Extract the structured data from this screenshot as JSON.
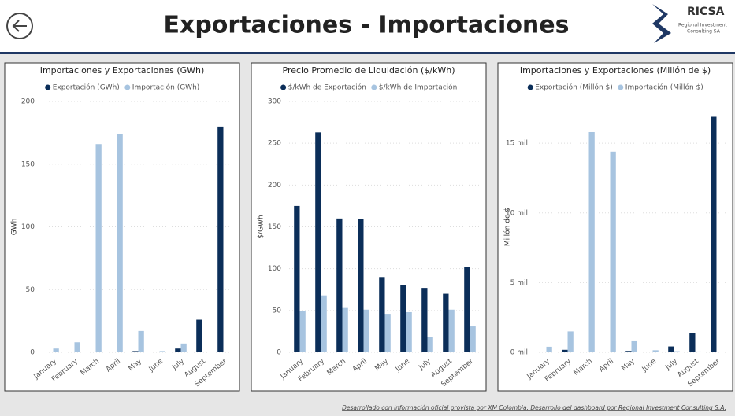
{
  "header": {
    "title": "Exportaciones - Importaciones",
    "logo_name": "RICSA",
    "logo_subtitle": [
      "Regional Investment",
      "Consulting SA"
    ]
  },
  "footer": "Desarrollado con información oficial provista por XM Colombia. Desarrollo del dashboard por Regional Investment Consulting S.A.",
  "chart_data": [
    {
      "type": "bar",
      "title": "Importaciones y Exportaciones (GWh)",
      "y_label": "GWh",
      "categories": [
        "January",
        "February",
        "March",
        "April",
        "May",
        "June",
        "July",
        "August",
        "September"
      ],
      "series": [
        {
          "name": "Exportación (GWh)",
          "color": "#0b2e59",
          "values": [
            0,
            0.5,
            0,
            0,
            1,
            0,
            3,
            26,
            180
          ]
        },
        {
          "name": "Importación (GWh)",
          "color": "#a7c4e0",
          "values": [
            3,
            8,
            166,
            174,
            17,
            1,
            7,
            0,
            0
          ]
        }
      ],
      "ylim": [
        0,
        200
      ],
      "yticks": [
        0,
        50,
        100,
        150,
        200
      ],
      "grid": true
    },
    {
      "type": "bar",
      "title": "Precio Promedio de Liquidación ($/kWh)",
      "y_label": "$/GWh",
      "categories": [
        "January",
        "February",
        "March",
        "April",
        "May",
        "June",
        "July",
        "August",
        "September"
      ],
      "series": [
        {
          "name": "$/kWh de Exportación",
          "color": "#0b2e59",
          "values": [
            175,
            263,
            160,
            159,
            90,
            80,
            77,
            70,
            102
          ]
        },
        {
          "name": "$/kWh de Importación",
          "color": "#a7c4e0",
          "values": [
            49,
            68,
            53,
            51,
            46,
            48,
            18,
            51,
            31
          ]
        }
      ],
      "ylim": [
        0,
        300
      ],
      "yticks": [
        0,
        50,
        100,
        150,
        200,
        250,
        300
      ],
      "grid": true
    },
    {
      "type": "bar",
      "title": "Importaciones y Exportaciones (Millón de $)",
      "y_label": "Millón de $",
      "categories": [
        "January",
        "February",
        "March",
        "April",
        "May",
        "June",
        "July",
        "August",
        "September"
      ],
      "series": [
        {
          "name": "Exportación (Millón $)",
          "color": "#0b2e59",
          "values": [
            0,
            180,
            0,
            0,
            100,
            0,
            420,
            1400,
            16900
          ]
        },
        {
          "name": "Importación (Millón $)",
          "color": "#a7c4e0",
          "values": [
            400,
            1500,
            15800,
            14400,
            850,
            150,
            80,
            60,
            30
          ]
        }
      ],
      "ylim": [
        0,
        18000
      ],
      "yticks": [
        {
          "value": 0,
          "label": "0 mil"
        },
        {
          "value": 5000,
          "label": "5 mil"
        },
        {
          "value": 10000,
          "label": "10 mil"
        },
        {
          "value": 15000,
          "label": "15 mil"
        }
      ],
      "grid": true
    }
  ]
}
